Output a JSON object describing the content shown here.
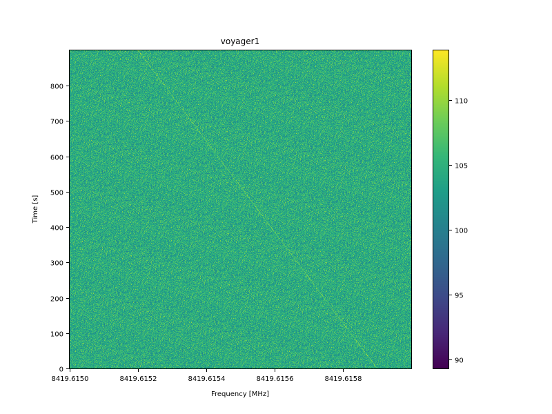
{
  "chart_data": {
    "type": "heatmap",
    "title": "voyager1",
    "xlabel": "Frequency [MHz]",
    "ylabel": "Time [s]",
    "xlim": [
      8419.615,
      8419.616
    ],
    "ylim": [
      0,
      900
    ],
    "x_ticks": [
      8419.615,
      8419.6152,
      8419.6154,
      8419.6156,
      8419.6158
    ],
    "x_tick_labels": [
      "8419.6150",
      "8419.6152",
      "8419.6154",
      "8419.6156",
      "8419.6158"
    ],
    "y_ticks": [
      0,
      100,
      200,
      300,
      400,
      500,
      600,
      700,
      800
    ],
    "y_tick_labels": [
      "0",
      "100",
      "200",
      "300",
      "400",
      "500",
      "600",
      "700",
      "800"
    ],
    "colorbar": {
      "colormap": "viridis",
      "range": [
        89.3,
        113.8
      ],
      "ticks": [
        90,
        95,
        100,
        105,
        110
      ],
      "tick_labels": [
        "90",
        "95",
        "100",
        "105",
        "110"
      ]
    },
    "noise_level": 104.5,
    "signal_track": {
      "description_values": "diagonal drifting carrier",
      "start": {
        "x": 8419.6159,
        "y": 0
      },
      "end": {
        "x": 8419.6152,
        "y": 900
      },
      "peak": 110
    }
  }
}
